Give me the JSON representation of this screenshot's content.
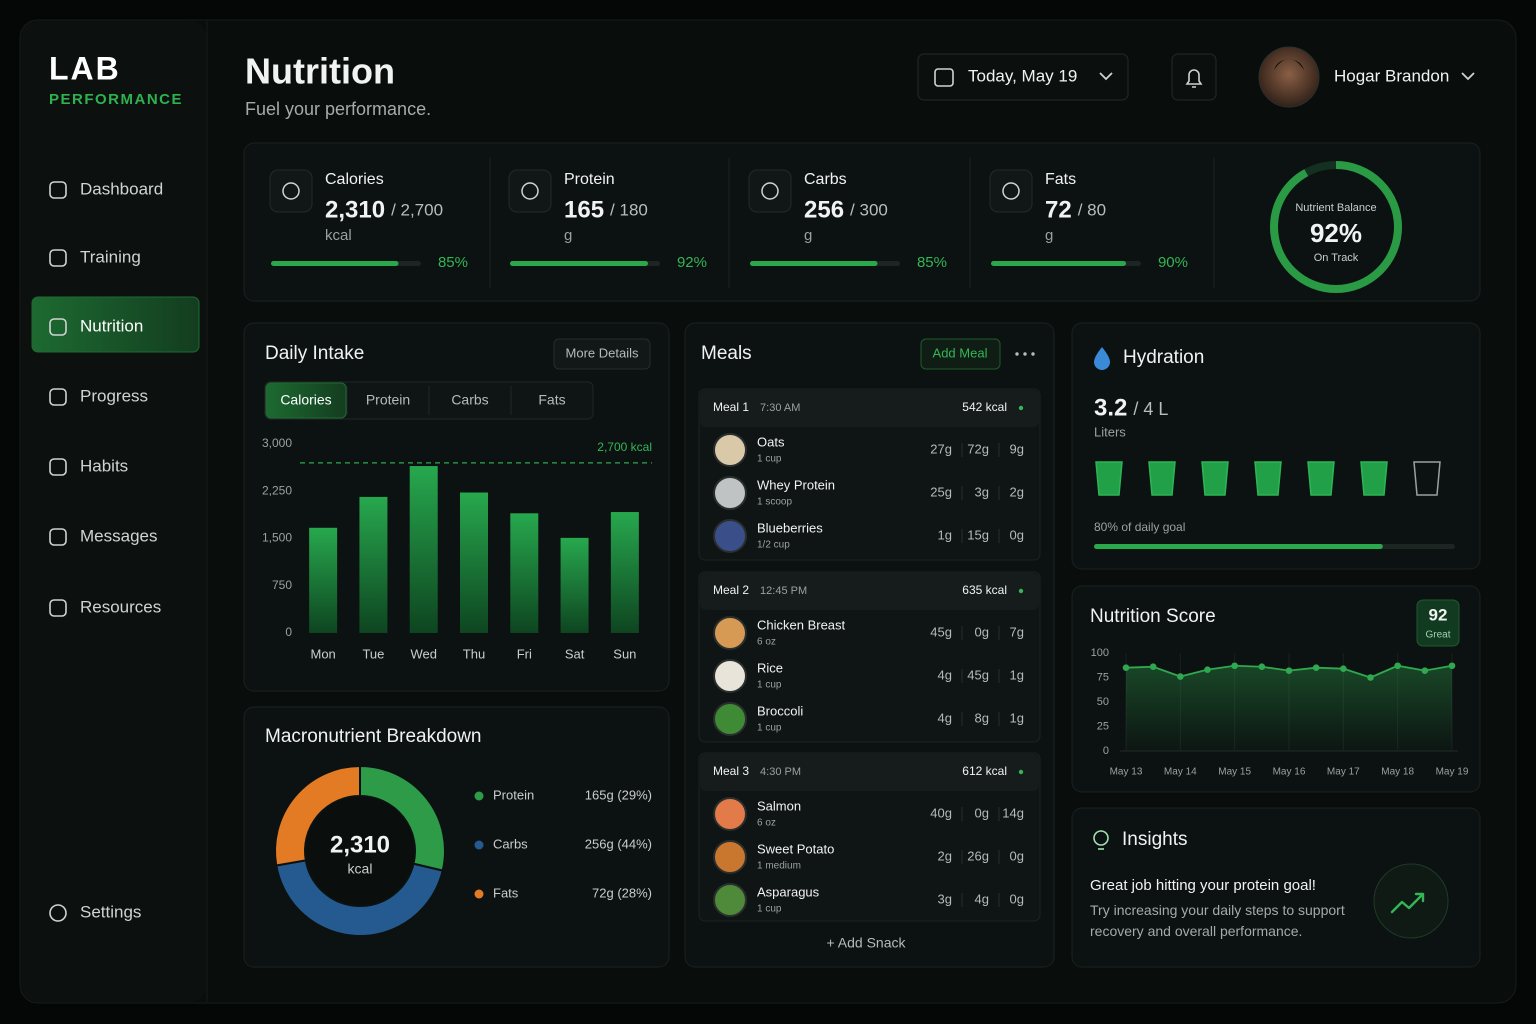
{
  "sidebar": {
    "brand": "LAB",
    "tagline": "PERFORMANCE",
    "nav": [
      "Dashboard",
      "Training",
      "Nutrition",
      "Progress",
      "Habits",
      "Messages",
      "Resources"
    ],
    "settings": "Settings"
  },
  "header": {
    "title": "Nutrition",
    "subtitle": "Fuel your performance.",
    "date": "Today, May 19",
    "user": "Hogar Brandon"
  },
  "stats": [
    {
      "label": "Calories",
      "value": "2,310",
      "goal": "/ 2,700",
      "unit": "kcal",
      "percent": 85,
      "percent_label": "85%"
    },
    {
      "label": "Protein",
      "value": "165",
      "goal": "/ 180",
      "unit": "g",
      "percent": 92,
      "percent_label": "92%"
    },
    {
      "label": "Carbs",
      "value": "256",
      "goal": "/ 300",
      "unit": "g",
      "percent": 85,
      "percent_label": "85%"
    },
    {
      "label": "Fats",
      "value": "72",
      "goal": "/ 80",
      "unit": "g",
      "percent": 90,
      "percent_label": "90%"
    }
  ],
  "balance": {
    "title": "Nutrient Balance",
    "value": 92,
    "value_label": "92%",
    "status": "On Track"
  },
  "daily_intake": {
    "type": "bar",
    "title": "Daily Intake",
    "button": "More Details",
    "tabs": [
      "Calories",
      "Protein",
      "Carbs",
      "Fats"
    ],
    "categories": [
      "Mon",
      "Tue",
      "Wed",
      "Thu",
      "Fri",
      "Sat",
      "Sun"
    ],
    "values": [
      1670,
      2160,
      2650,
      2230,
      1900,
      1510,
      1920
    ],
    "color": "#22a04a",
    "ylim": [
      0,
      3000
    ],
    "yticks": [
      0,
      750,
      {
        "value": 1500,
        "label": "1,500"
      },
      {
        "value": 2250,
        "label": "2,250"
      },
      {
        "value": 3000,
        "label": "3,000"
      }
    ],
    "target": 2700,
    "target_label": "2,700 kcal"
  },
  "macros": {
    "type": "donut",
    "title": "Macronutrient Breakdown",
    "total": "2,310",
    "unit": "kcal",
    "categories": [
      "Protein",
      "Carbs",
      "Fats"
    ],
    "values": [
      29,
      44,
      28
    ],
    "value_labels": [
      "165g (29%)",
      "256g (44%)",
      "72g (28%)"
    ],
    "colors": [
      "#2e9b49",
      "#245a8f",
      "#e27b23"
    ]
  },
  "meals": {
    "title": "Meals",
    "add": "Add Meal",
    "groups": [
      {
        "name": "Meal 1",
        "time": "7:30 AM",
        "kcal": "542 kcal",
        "items": [
          {
            "name": "Oats",
            "qty": "1 cup",
            "macros": [
              "27g",
              "72g",
              "9g"
            ]
          },
          {
            "name": "Whey Protein",
            "qty": "1 scoop",
            "macros": [
              "25g",
              "3g",
              "2g"
            ]
          },
          {
            "name": "Blueberries",
            "qty": "1/2 cup",
            "macros": [
              "1g",
              "15g",
              "0g"
            ]
          }
        ]
      },
      {
        "name": "Meal 2",
        "time": "12:45 PM",
        "kcal": "635 kcal",
        "items": [
          {
            "name": "Chicken Breast",
            "qty": "6 oz",
            "macros": [
              "45g",
              "0g",
              "7g"
            ]
          },
          {
            "name": "Rice",
            "qty": "1 cup",
            "macros": [
              "4g",
              "45g",
              "1g"
            ]
          },
          {
            "name": "Broccoli",
            "qty": "1 cup",
            "macros": [
              "4g",
              "8g",
              "1g"
            ]
          }
        ]
      },
      {
        "name": "Meal 3",
        "time": "4:30 PM",
        "kcal": "612 kcal",
        "items": [
          {
            "name": "Salmon",
            "qty": "6 oz",
            "macros": [
              "40g",
              "0g",
              "14g"
            ]
          },
          {
            "name": "Sweet Potato",
            "qty": "1 medium",
            "macros": [
              "2g",
              "26g",
              "0g"
            ]
          },
          {
            "name": "Asparagus",
            "qty": "1 cup",
            "macros": [
              "3g",
              "4g",
              "0g"
            ]
          }
        ]
      }
    ],
    "add_snack": "+ Add Snack"
  },
  "hydration": {
    "title": "Hydration",
    "value": "3.2",
    "goal": "/ 4 L",
    "unit": "Liters",
    "cups_filled": 6,
    "cups_total": 7,
    "percent": 80,
    "percent_label": "80% of daily goal"
  },
  "score": {
    "type": "line",
    "title": "Nutrition Score",
    "badge": 92,
    "badge_label": "Great",
    "categories": [
      "May 13",
      null,
      "May 14",
      null,
      "May 15",
      null,
      "May 16",
      null,
      "May 17",
      null,
      "May 18",
      null,
      "May 19"
    ],
    "values": [
      85,
      86,
      76,
      83,
      87,
      86,
      82,
      85,
      84,
      75,
      87,
      82,
      87
    ],
    "color": "#2fa84f",
    "ylim": [
      0,
      100
    ],
    "yticks": [
      0,
      25,
      50,
      75,
      100
    ]
  },
  "insights": {
    "title": "Insights",
    "headline": "Great job hitting your protein goal!",
    "body": "Try increasing your daily steps to support recovery and overall performance."
  }
}
